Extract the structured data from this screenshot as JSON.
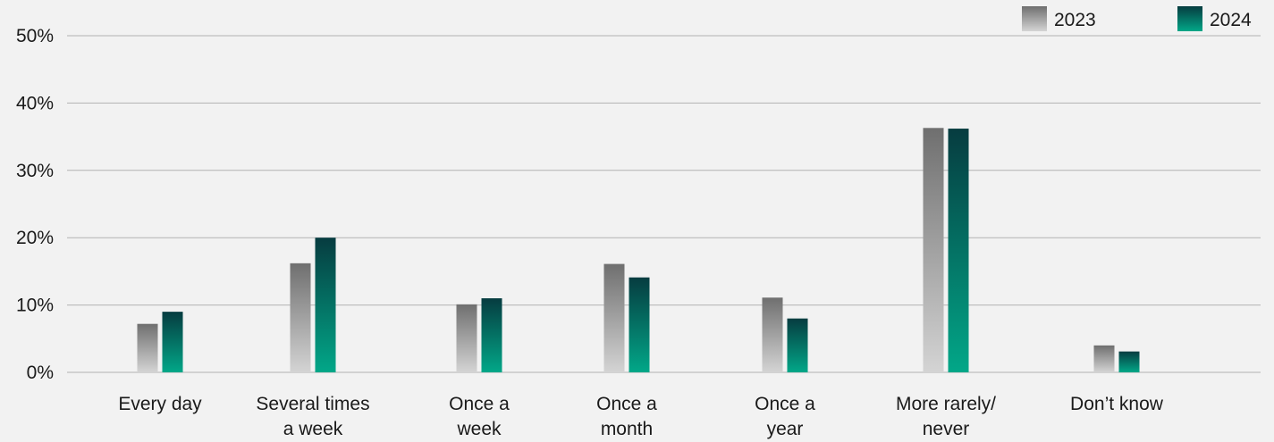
{
  "chart_data": {
    "type": "bar",
    "categories": [
      [
        "Every day"
      ],
      [
        "Several times",
        "a week"
      ],
      [
        "Once a",
        "week"
      ],
      [
        "Once a",
        "month"
      ],
      [
        "Once a",
        "year"
      ],
      [
        "More rarely/",
        "never"
      ],
      [
        "Don’t know"
      ]
    ],
    "series": [
      {
        "name": "2023",
        "values": [
          7.2,
          16.2,
          10.1,
          16.1,
          11.1,
          36.3,
          4.0
        ],
        "gradient": [
          "#6f6f6f",
          "#d4d4d4"
        ]
      },
      {
        "name": "2024",
        "values": [
          9.0,
          20.0,
          11.0,
          14.1,
          8.0,
          36.2,
          3.1
        ],
        "gradient": [
          "#063c40",
          "#02a788"
        ]
      }
    ],
    "yticks": [
      "0%",
      "10%",
      "20%",
      "30%",
      "40%",
      "50%"
    ],
    "ylim": [
      0,
      50
    ],
    "grid": true,
    "legend_position": "top-right"
  }
}
